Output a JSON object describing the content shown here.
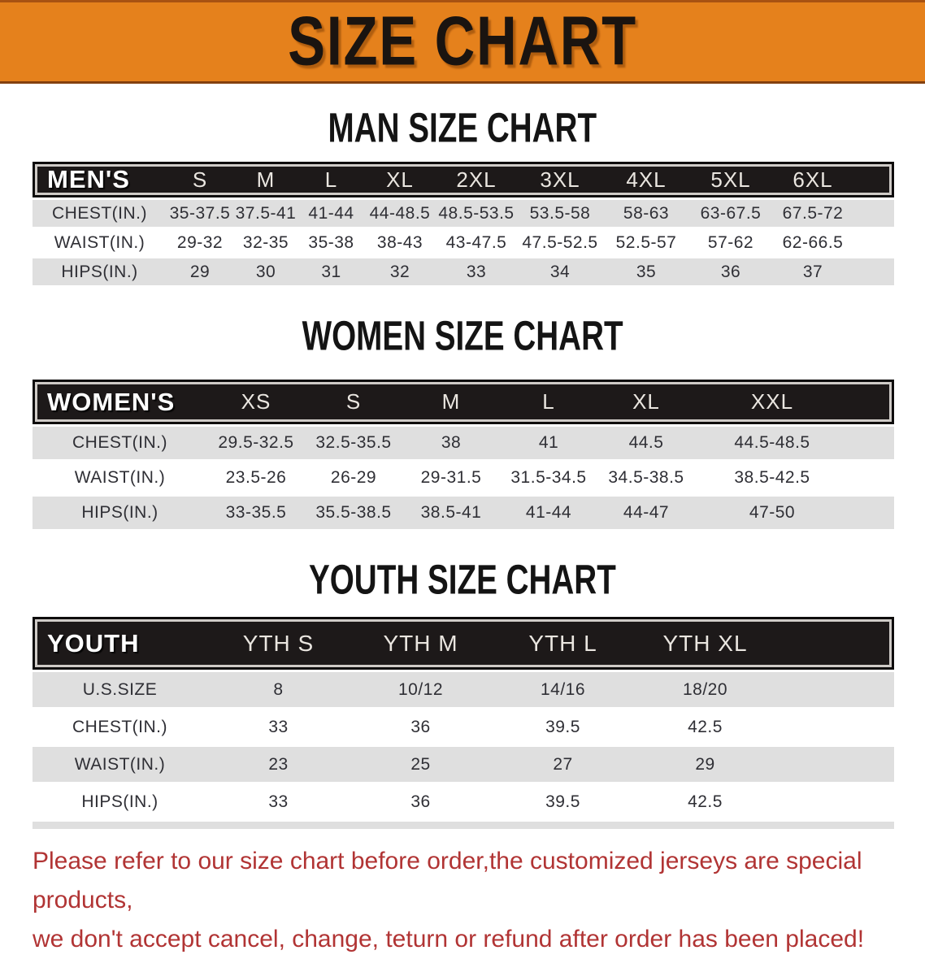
{
  "banner": {
    "title": "SIZE CHART"
  },
  "sections": [
    {
      "heading": "MAN SIZE CHART",
      "table": {
        "header_label": "MEN'S",
        "columns": [
          "S",
          "M",
          "L",
          "XL",
          "2XL",
          "3XL",
          "4XL",
          "5XL",
          "6XL"
        ],
        "rows": [
          {
            "label": "CHEST(IN.)",
            "values": [
              "35-37.5",
              "37.5-41",
              "41-44",
              "44-48.5",
              "48.5-53.5",
              "53.5-58",
              "58-63",
              "63-67.5",
              "67.5-72"
            ]
          },
          {
            "label": "WAIST(IN.)",
            "values": [
              "29-32",
              "32-35",
              "35-38",
              "38-43",
              "43-47.5",
              "47.5-52.5",
              "52.5-57",
              "57-62",
              "62-66.5"
            ]
          },
          {
            "label": "HIPS(IN.)",
            "values": [
              "29",
              "30",
              "31",
              "32",
              "33",
              "34",
              "35",
              "36",
              "37"
            ]
          }
        ]
      }
    },
    {
      "heading": "WOMEN SIZE CHART",
      "table": {
        "header_label": "WOMEN'S",
        "columns": [
          "XS",
          "S",
          "M",
          "L",
          "XL",
          "XXL"
        ],
        "rows": [
          {
            "label": "CHEST(IN.)",
            "values": [
              "29.5-32.5",
              "32.5-35.5",
              "38",
              "41",
              "44.5",
              "44.5-48.5"
            ]
          },
          {
            "label": "WAIST(IN.)",
            "values": [
              "23.5-26",
              "26-29",
              "29-31.5",
              "31.5-34.5",
              "34.5-38.5",
              "38.5-42.5"
            ]
          },
          {
            "label": "HIPS(IN.)",
            "values": [
              "33-35.5",
              "35.5-38.5",
              "38.5-41",
              "41-44",
              "44-47",
              "47-50"
            ]
          }
        ]
      }
    },
    {
      "heading": "YOUTH SIZE CHART",
      "table": {
        "header_label": "YOUTH",
        "columns": [
          "YTH S",
          "YTH M",
          "YTH L",
          "YTH XL"
        ],
        "rows": [
          {
            "label": "U.S.SIZE",
            "values": [
              "8",
              "10/12",
              "14/16",
              "18/20"
            ]
          },
          {
            "label": "CHEST(IN.)",
            "values": [
              "33",
              "36",
              "39.5",
              "42.5"
            ]
          },
          {
            "label": "WAIST(IN.)",
            "values": [
              "23",
              "25",
              "27",
              "29"
            ]
          },
          {
            "label": "HIPS(IN.)",
            "values": [
              "33",
              "36",
              "39.5",
              "42.5"
            ]
          }
        ]
      }
    }
  ],
  "footer": {
    "line1": "Please refer to our size chart before order,the customized jerseys are special products,",
    "line2": "we don't accept cancel, change, teturn or refund after order has been placed!"
  },
  "colors": {
    "banner_orange": "#E5811C",
    "banner_edge_dark": "#83400F",
    "header_bar_black": "#1D1919",
    "row_gray": "#DFDFDF",
    "data_text": "#2F2F35",
    "disclaimer_red": "#B13434"
  }
}
